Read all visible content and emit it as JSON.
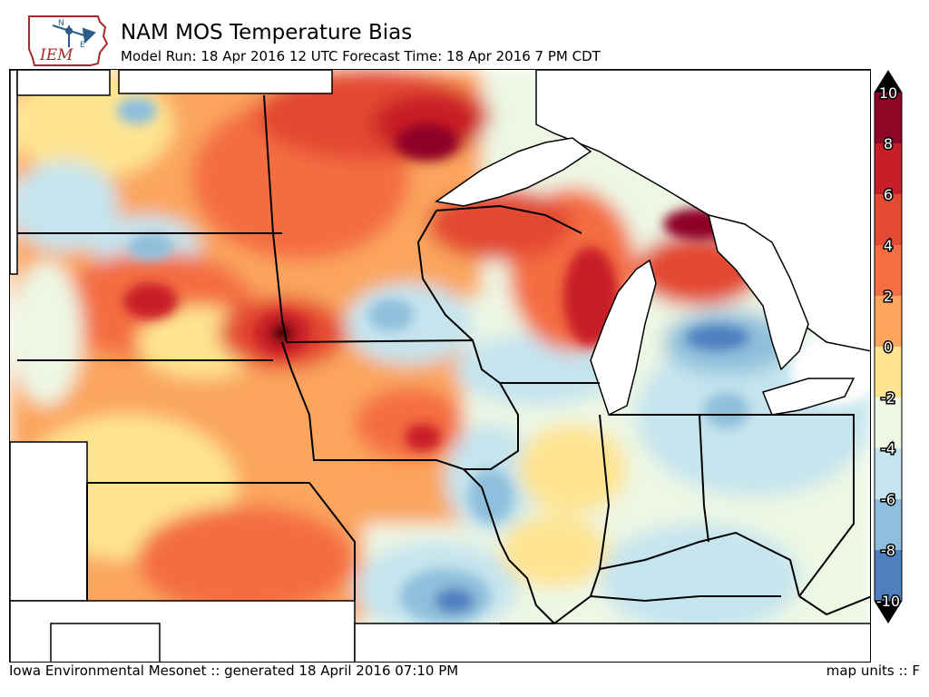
{
  "header": {
    "logo_text": "IEM",
    "title": "NAM MOS Temperature Bias",
    "subtitle": "Model Run: 18 Apr 2016 12 UTC Forecast Time: 18 Apr 2016 7 PM CDT"
  },
  "colorbar": {
    "ticks": [
      "10",
      "8",
      "6",
      "4",
      "2",
      "0",
      "-2",
      "-4",
      "-6",
      "-8",
      "-10"
    ],
    "colors": [
      "#8e0626",
      "#c81d27",
      "#e34a33",
      "#f46d43",
      "#fba55f",
      "#fee491",
      "#edf7e4",
      "#c5e4ee",
      "#8fbfdc",
      "#4f7fbf",
      "#313695"
    ],
    "upper_extend_color": "#000000",
    "lower_extend_color": "#000000"
  },
  "footer": {
    "left": "Iowa Environmental Mesonet :: generated 18 April 2016 07:10 PM",
    "right": "map units :: F"
  }
}
